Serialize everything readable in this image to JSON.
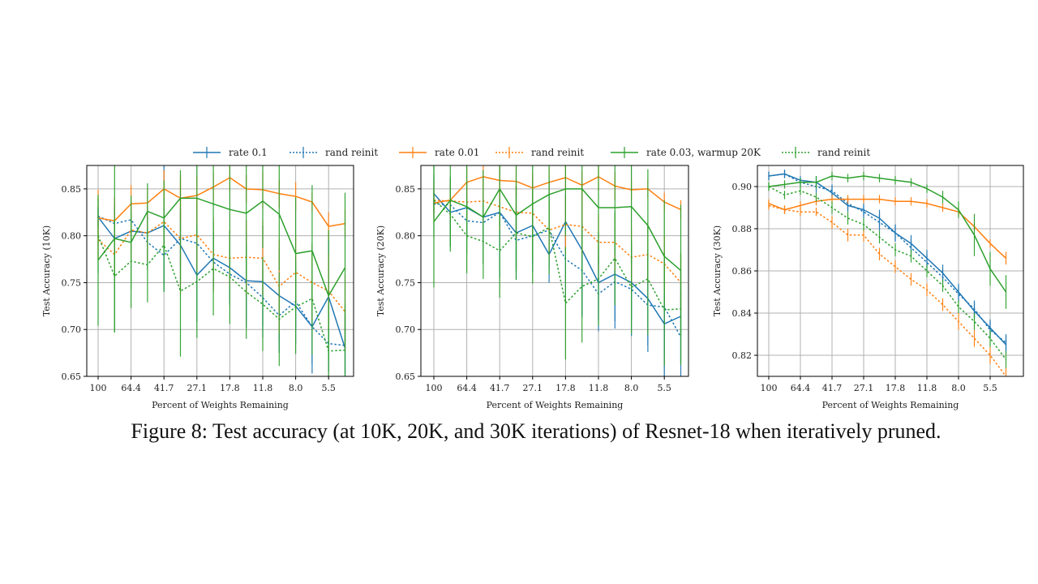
{
  "legend": [
    {
      "label": "rate 0.1",
      "color": "#1f77b4",
      "dash": false
    },
    {
      "label": "rand reinit",
      "color": "#1f77b4",
      "dash": true
    },
    {
      "label": "rate 0.01",
      "color": "#ff7f0e",
      "dash": false
    },
    {
      "label": "rand reinit",
      "color": "#ff7f0e",
      "dash": true
    },
    {
      "label": "rate 0.03, warmup 20K",
      "color": "#2ca02c",
      "dash": false
    },
    {
      "label": "rand reinit",
      "color": "#2ca02c",
      "dash": true
    }
  ],
  "caption": "Figure 8: Test accuracy (at 10K, 20K, and 30K iterations) of Resnet-18 when iteratively pruned.",
  "chart_data": [
    {
      "type": "line",
      "xlabel": "Percent of Weights Remaining",
      "ylabel": "Test Accuracy (10K)",
      "x_ticks": [
        "100",
        "64.4",
        "41.7",
        "27.1",
        "17.8",
        "11.8",
        "8.0",
        "5.5"
      ],
      "x_tick_index": [
        0,
        2,
        4,
        6,
        8,
        10,
        12,
        14
      ],
      "ylim": [
        0.65,
        0.875
      ],
      "y_ticks": [
        0.65,
        0.7,
        0.75,
        0.8,
        0.85
      ],
      "y_tick_labels": [
        "0.65",
        "0.70",
        "0.75",
        "0.80",
        "0.85"
      ],
      "grid": true,
      "series": [
        {
          "name": "rate 0.1",
          "color": "#1f77b4",
          "dash": false,
          "values": [
            0.82,
            0.797,
            0.805,
            0.803,
            0.811,
            0.79,
            0.758,
            0.776,
            0.766,
            0.752,
            0.751,
            0.736,
            0.725,
            0.703,
            0.735,
            0.68
          ],
          "err": [
            0.01,
            0.03,
            0.02,
            0.03,
            0.07,
            0.04,
            0.05,
            0.03,
            0.04,
            0.05,
            0.06,
            0.05,
            0.04,
            0.05,
            0.06,
            0.04
          ]
        },
        {
          "name": "rand reinit",
          "color": "#1f77b4",
          "dash": true,
          "values": [
            0.821,
            0.813,
            0.817,
            0.793,
            0.779,
            0.797,
            0.792,
            0.772,
            0.759,
            0.75,
            0.734,
            0.715,
            0.73,
            0.703,
            0.685,
            0.683
          ],
          "err": [
            0.01,
            0.02,
            0.02,
            0.03,
            0.03,
            0.03,
            0.04,
            0.03,
            0.03,
            0.04,
            0.03,
            0.04,
            0.03,
            0.04,
            0.03,
            0.03
          ]
        },
        {
          "name": "rate 0.01",
          "color": "#ff7f0e",
          "dash": false,
          "values": [
            0.819,
            0.816,
            0.834,
            0.835,
            0.85,
            0.84,
            0.843,
            0.852,
            0.862,
            0.85,
            0.849,
            0.845,
            0.842,
            0.836,
            0.81,
            0.813
          ],
          "err": [
            0.03,
            0.025,
            0.02,
            0.015,
            0.02,
            0.025,
            0.02,
            0.015,
            0.015,
            0.015,
            0.02,
            0.015,
            0.015,
            0.01,
            0.015,
            0.015
          ]
        },
        {
          "name": "rand reinit",
          "color": "#ff7f0e",
          "dash": true,
          "values": [
            0.796,
            0.78,
            0.806,
            0.803,
            0.815,
            0.797,
            0.801,
            0.78,
            0.776,
            0.777,
            0.776,
            0.746,
            0.761,
            0.75,
            0.741,
            0.719
          ],
          "err": [
            0.02,
            0.025,
            0.03,
            0.03,
            0.03,
            0.06,
            0.04,
            0.04,
            0.03,
            0.04,
            0.04,
            0.05,
            0.04,
            0.04,
            0.04,
            0.04
          ]
        },
        {
          "name": "rate 0.03, warmup 20K",
          "color": "#2ca02c",
          "dash": false,
          "values": [
            0.774,
            0.797,
            0.793,
            0.826,
            0.819,
            0.84,
            0.84,
            0.834,
            0.828,
            0.824,
            0.837,
            0.823,
            0.781,
            0.784,
            0.736,
            0.766
          ],
          "err": [
            0.07,
            0.1,
            0.05,
            0.03,
            0.04,
            0.03,
            0.04,
            0.05,
            0.06,
            0.07,
            0.05,
            0.06,
            0.06,
            0.07,
            0.07,
            0.08
          ]
        },
        {
          "name": "rand reinit",
          "color": "#2ca02c",
          "dash": true,
          "values": [
            0.8,
            0.757,
            0.773,
            0.769,
            0.79,
            0.741,
            0.751,
            0.765,
            0.756,
            0.74,
            0.727,
            0.711,
            0.724,
            0.733,
            0.677,
            0.678
          ],
          "err": [
            0.04,
            0.06,
            0.05,
            0.04,
            0.05,
            0.07,
            0.06,
            0.05,
            0.05,
            0.05,
            0.05,
            0.05,
            0.05,
            0.06,
            0.05,
            0.05
          ]
        }
      ]
    },
    {
      "type": "line",
      "xlabel": "Percent of Weights Remaining",
      "ylabel": "Test Accuracy (20K)",
      "x_ticks": [
        "100",
        "64.4",
        "41.7",
        "27.1",
        "17.8",
        "11.8",
        "8.0",
        "5.5"
      ],
      "x_tick_index": [
        0,
        2,
        4,
        6,
        8,
        10,
        12,
        14
      ],
      "ylim": [
        0.65,
        0.875
      ],
      "y_ticks": [
        0.65,
        0.7,
        0.75,
        0.8,
        0.85
      ],
      "y_tick_labels": [
        "0.65",
        "0.70",
        "0.75",
        "0.80",
        "0.85"
      ],
      "grid": true,
      "series": [
        {
          "name": "rate 0.1",
          "color": "#1f77b4",
          "dash": false,
          "values": [
            0.845,
            0.825,
            0.83,
            0.82,
            0.825,
            0.803,
            0.811,
            0.78,
            0.815,
            0.785,
            0.75,
            0.759,
            0.75,
            0.733,
            0.706,
            0.714
          ],
          "err": [
            0.02,
            0.035,
            0.03,
            0.05,
            0.07,
            0.05,
            0.05,
            0.03,
            0.03,
            0.07,
            0.04,
            0.05,
            0.04,
            0.05,
            0.07,
            0.05
          ]
        },
        {
          "name": "rand reinit",
          "color": "#1f77b4",
          "dash": true,
          "values": [
            0.834,
            0.833,
            0.816,
            0.814,
            0.825,
            0.795,
            0.8,
            0.806,
            0.775,
            0.763,
            0.738,
            0.751,
            0.743,
            0.726,
            0.724,
            0.692
          ],
          "err": [
            0.015,
            0.02,
            0.02,
            0.025,
            0.03,
            0.03,
            0.03,
            0.04,
            0.04,
            0.05,
            0.04,
            0.05,
            0.05,
            0.05,
            0.05,
            0.05
          ]
        },
        {
          "name": "rate 0.01",
          "color": "#ff7f0e",
          "dash": false,
          "values": [
            0.835,
            0.838,
            0.857,
            0.863,
            0.859,
            0.858,
            0.851,
            0.857,
            0.862,
            0.854,
            0.863,
            0.853,
            0.849,
            0.85,
            0.836,
            0.828
          ],
          "err": [
            0.01,
            0.01,
            0.015,
            0.02,
            0.015,
            0.015,
            0.015,
            0.015,
            0.015,
            0.015,
            0.015,
            0.015,
            0.01,
            0.01,
            0.01,
            0.01
          ]
        },
        {
          "name": "rand reinit",
          "color": "#ff7f0e",
          "dash": true,
          "values": [
            0.838,
            0.837,
            0.836,
            0.837,
            0.831,
            0.825,
            0.824,
            0.806,
            0.812,
            0.81,
            0.793,
            0.793,
            0.777,
            0.78,
            0.77,
            0.75
          ],
          "err": [
            0.02,
            0.02,
            0.02,
            0.025,
            0.025,
            0.03,
            0.03,
            0.03,
            0.03,
            0.03,
            0.03,
            0.03,
            0.03,
            0.03,
            0.03,
            0.03
          ]
        },
        {
          "name": "rate 0.03, warmup 20K",
          "color": "#2ca02c",
          "dash": false,
          "values": [
            0.815,
            0.838,
            0.831,
            0.82,
            0.85,
            0.822,
            0.834,
            0.844,
            0.85,
            0.85,
            0.83,
            0.83,
            0.831,
            0.811,
            0.778,
            0.763
          ],
          "err": [
            0.07,
            0.05,
            0.05,
            0.05,
            0.04,
            0.06,
            0.06,
            0.04,
            0.05,
            0.06,
            0.06,
            0.05,
            0.06,
            0.06,
            0.06,
            0.07
          ]
        },
        {
          "name": "rand reinit",
          "color": "#2ca02c",
          "dash": true,
          "values": [
            0.838,
            0.823,
            0.8,
            0.794,
            0.784,
            0.803,
            0.799,
            0.809,
            0.728,
            0.746,
            0.754,
            0.776,
            0.745,
            0.754,
            0.721,
            0.722
          ],
          "err": [
            0.04,
            0.04,
            0.04,
            0.04,
            0.05,
            0.05,
            0.05,
            0.05,
            0.06,
            0.06,
            0.05,
            0.05,
            0.05,
            0.06,
            0.06,
            0.06
          ]
        }
      ]
    },
    {
      "type": "line",
      "xlabel": "Percent of Weights Remaining",
      "ylabel": "Test Accuracy (30K)",
      "x_ticks": [
        "100",
        "64.4",
        "41.7",
        "27.1",
        "17.8",
        "11.8",
        "8.0",
        "5.5"
      ],
      "x_tick_index": [
        0,
        2,
        4,
        6,
        8,
        10,
        12,
        14
      ],
      "ylim": [
        0.81,
        0.91
      ],
      "y_ticks": [
        0.82,
        0.84,
        0.86,
        0.88,
        0.9
      ],
      "y_tick_labels": [
        "0.82",
        "0.84",
        "0.86",
        "0.88",
        "0.90"
      ],
      "grid": true,
      "series": [
        {
          "name": "rate 0.1",
          "color": "#1f77b4",
          "dash": false,
          "values": [
            0.905,
            0.906,
            0.903,
            0.902,
            0.897,
            0.891,
            0.889,
            0.885,
            0.878,
            0.873,
            0.866,
            0.859,
            0.85,
            0.841,
            0.833,
            0.825
          ],
          "err": [
            0.002,
            0.002,
            0.002,
            0.003,
            0.003,
            0.003,
            0.003,
            0.004,
            0.004,
            0.004,
            0.004,
            0.004,
            0.004,
            0.004,
            0.004,
            0.004
          ]
        },
        {
          "name": "rand reinit",
          "color": "#1f77b4",
          "dash": true,
          "values": [
            0.905,
            0.906,
            0.902,
            0.9,
            0.898,
            0.892,
            0.888,
            0.883,
            0.878,
            0.871,
            0.864,
            0.857,
            0.849,
            0.842,
            0.832,
            0.826
          ],
          "err": [
            0.002,
            0.002,
            0.002,
            0.003,
            0.003,
            0.003,
            0.003,
            0.004,
            0.004,
            0.004,
            0.004,
            0.004,
            0.004,
            0.004,
            0.004,
            0.004
          ]
        },
        {
          "name": "rate 0.01",
          "color": "#ff7f0e",
          "dash": false,
          "values": [
            0.892,
            0.889,
            0.891,
            0.893,
            0.894,
            0.894,
            0.894,
            0.894,
            0.893,
            0.893,
            0.892,
            0.89,
            0.888,
            0.881,
            0.873,
            0.866
          ],
          "err": [
            0.002,
            0.002,
            0.002,
            0.002,
            0.002,
            0.002,
            0.002,
            0.002,
            0.002,
            0.002,
            0.002,
            0.002,
            0.002,
            0.002,
            0.002,
            0.003
          ]
        },
        {
          "name": "rand reinit",
          "color": "#ff7f0e",
          "dash": true,
          "values": [
            0.891,
            0.889,
            0.888,
            0.888,
            0.883,
            0.877,
            0.877,
            0.868,
            0.862,
            0.856,
            0.851,
            0.844,
            0.836,
            0.828,
            0.82,
            0.81
          ],
          "err": [
            0.002,
            0.002,
            0.002,
            0.002,
            0.003,
            0.003,
            0.003,
            0.003,
            0.003,
            0.003,
            0.003,
            0.003,
            0.004,
            0.004,
            0.004,
            0.004
          ]
        },
        {
          "name": "rate 0.03, warmup 20K",
          "color": "#2ca02c",
          "dash": false,
          "values": [
            0.9,
            0.901,
            0.902,
            0.902,
            0.905,
            0.904,
            0.905,
            0.904,
            0.903,
            0.902,
            0.899,
            0.895,
            0.889,
            0.877,
            0.861,
            0.85
          ],
          "err": [
            0.002,
            0.002,
            0.002,
            0.003,
            0.002,
            0.002,
            0.002,
            0.002,
            0.002,
            0.002,
            0.002,
            0.003,
            0.004,
            0.01,
            0.008,
            0.008
          ]
        },
        {
          "name": "rand reinit",
          "color": "#2ca02c",
          "dash": true,
          "values": [
            0.9,
            0.896,
            0.898,
            0.895,
            0.89,
            0.885,
            0.882,
            0.876,
            0.87,
            0.867,
            0.86,
            0.853,
            0.843,
            0.836,
            0.828,
            0.818
          ],
          "err": [
            0.002,
            0.002,
            0.002,
            0.002,
            0.003,
            0.003,
            0.003,
            0.003,
            0.003,
            0.003,
            0.003,
            0.003,
            0.003,
            0.004,
            0.004,
            0.004
          ]
        }
      ]
    }
  ]
}
